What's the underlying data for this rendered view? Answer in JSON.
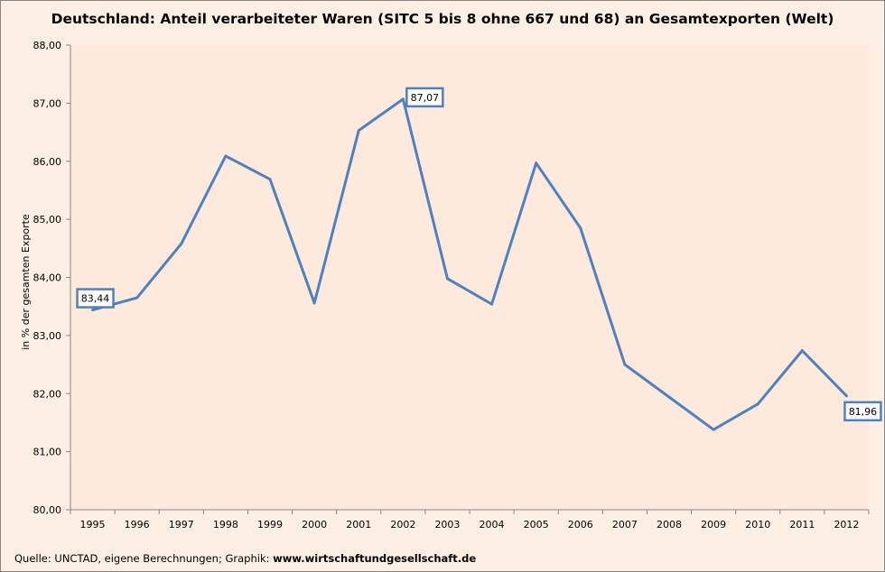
{
  "chart_data": {
    "type": "line",
    "title": "Deutschland: Anteil verarbeiteter Waren (SITC 5 bis 8 ohne 667 und 68) an Gesamtexporten (Welt)",
    "xlabel": "",
    "ylabel": "in % der gesamten Exporte",
    "ylim": [
      80,
      88
    ],
    "yticks": [
      "80,00",
      "81,00",
      "82,00",
      "83,00",
      "84,00",
      "85,00",
      "86,00",
      "87,00",
      "88,00"
    ],
    "categories": [
      "1995",
      "1996",
      "1997",
      "1998",
      "1999",
      "2000",
      "2001",
      "2002",
      "2003",
      "2004",
      "2005",
      "2006",
      "2007",
      "2008",
      "2009",
      "2010",
      "2011",
      "2012"
    ],
    "series": [
      {
        "name": "Anteil",
        "color": "#4f81bd",
        "values": [
          83.44,
          83.65,
          84.58,
          86.09,
          85.69,
          83.56,
          86.53,
          87.07,
          83.98,
          83.54,
          85.97,
          84.85,
          82.5,
          81.94,
          81.38,
          81.82,
          82.74,
          81.96
        ]
      }
    ],
    "data_labels": [
      {
        "index": 0,
        "text": "83,44"
      },
      {
        "index": 7,
        "text": "87,07"
      },
      {
        "index": 17,
        "text": "81,96"
      }
    ],
    "grid": false,
    "legend": "none"
  },
  "footer": {
    "source": "Quelle: UNCTAD, eigene Berechnungen; Graphik: ",
    "website": "www.wirtschaftundgesellschaft.de"
  }
}
